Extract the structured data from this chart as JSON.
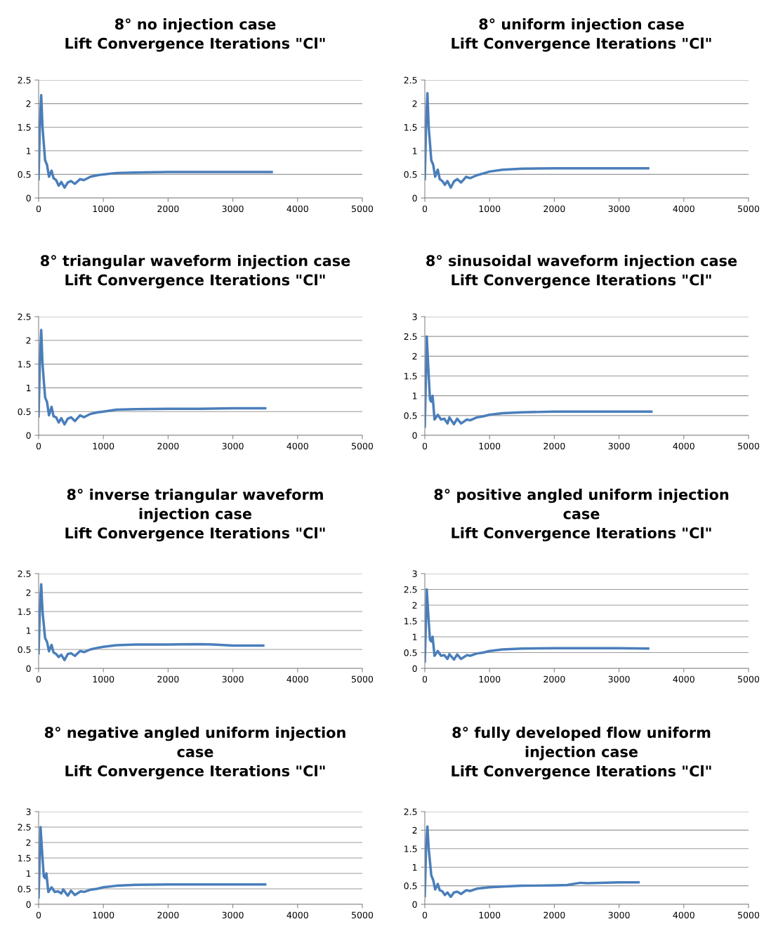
{
  "chart_data": [
    {
      "type": "line",
      "title": "8° no injection case\nLift Convergence Iterations \"Cl\"",
      "xlim": [
        0,
        5000
      ],
      "xticks": [
        0,
        1000,
        2000,
        3000,
        4000,
        5000
      ],
      "ylim": [
        0,
        2.5
      ],
      "yticks": [
        0,
        0.5,
        1,
        1.5,
        2,
        2.5
      ],
      "grid": "y",
      "legend": false,
      "series": [
        {
          "color": "#4a7ebb",
          "x": [
            0,
            20,
            40,
            60,
            100,
            130,
            160,
            200,
            230,
            270,
            310,
            350,
            400,
            450,
            500,
            560,
            640,
            700,
            800,
            900,
            1000,
            1200,
            1500,
            2000,
            2500,
            3000,
            3600
          ],
          "values": [
            0.4,
            1.6,
            2.18,
            1.5,
            0.8,
            0.7,
            0.45,
            0.58,
            0.42,
            0.38,
            0.26,
            0.34,
            0.22,
            0.33,
            0.36,
            0.3,
            0.4,
            0.38,
            0.45,
            0.48,
            0.5,
            0.53,
            0.54,
            0.55,
            0.55,
            0.55,
            0.55
          ]
        }
      ]
    },
    {
      "type": "line",
      "title": "8° uniform injection case\nLift Convergence Iterations \"Cl\"",
      "xlim": [
        0,
        5000
      ],
      "xticks": [
        0,
        1000,
        2000,
        3000,
        4000,
        5000
      ],
      "ylim": [
        0,
        2.5
      ],
      "yticks": [
        0,
        0.5,
        1,
        1.5,
        2,
        2.5
      ],
      "grid": "y",
      "legend": false,
      "series": [
        {
          "color": "#4a7ebb",
          "x": [
            0,
            20,
            40,
            60,
            100,
            130,
            160,
            200,
            230,
            270,
            310,
            350,
            400,
            450,
            500,
            560,
            640,
            700,
            800,
            900,
            1000,
            1200,
            1500,
            2000,
            2500,
            3000,
            3450
          ],
          "values": [
            0.4,
            1.6,
            2.22,
            1.5,
            0.8,
            0.7,
            0.45,
            0.6,
            0.4,
            0.36,
            0.28,
            0.36,
            0.22,
            0.35,
            0.4,
            0.33,
            0.45,
            0.42,
            0.48,
            0.52,
            0.56,
            0.6,
            0.62,
            0.63,
            0.63,
            0.63,
            0.63
          ]
        }
      ]
    },
    {
      "type": "line",
      "title": "8° triangular waveform injection case\nLift Convergence Iterations \"Cl\"",
      "xlim": [
        0,
        5000
      ],
      "xticks": [
        0,
        1000,
        2000,
        3000,
        4000,
        5000
      ],
      "ylim": [
        0,
        2.5
      ],
      "yticks": [
        0,
        0.5,
        1,
        1.5,
        2,
        2.5
      ],
      "grid": "y",
      "legend": false,
      "series": [
        {
          "color": "#4a7ebb",
          "x": [
            0,
            20,
            40,
            60,
            100,
            130,
            160,
            200,
            230,
            270,
            310,
            350,
            400,
            450,
            500,
            560,
            640,
            700,
            800,
            900,
            1000,
            1200,
            1500,
            2000,
            2500,
            3000,
            3500
          ],
          "values": [
            0.4,
            1.6,
            2.22,
            1.5,
            0.8,
            0.7,
            0.42,
            0.6,
            0.4,
            0.38,
            0.27,
            0.36,
            0.23,
            0.35,
            0.38,
            0.3,
            0.42,
            0.38,
            0.45,
            0.48,
            0.5,
            0.54,
            0.55,
            0.56,
            0.56,
            0.57,
            0.57
          ]
        }
      ]
    },
    {
      "type": "line",
      "title": "8° sinusoidal waveform injection case\nLift Convergence Iterations \"Cl\"",
      "xlim": [
        0,
        5000
      ],
      "xticks": [
        0,
        1000,
        2000,
        3000,
        4000,
        5000
      ],
      "ylim": [
        0,
        3
      ],
      "yticks": [
        0,
        0.5,
        1,
        1.5,
        2,
        2.5,
        3
      ],
      "grid": "y",
      "legend": false,
      "series": [
        {
          "color": "#4a7ebb",
          "x": [
            0,
            30,
            60,
            80,
            100,
            120,
            150,
            200,
            250,
            300,
            350,
            380,
            450,
            500,
            560,
            650,
            700,
            800,
            900,
            1000,
            1200,
            1500,
            2000,
            2500,
            3000,
            3500
          ],
          "values": [
            0.22,
            2.5,
            1.5,
            0.9,
            0.85,
            1.0,
            0.4,
            0.52,
            0.4,
            0.42,
            0.3,
            0.45,
            0.28,
            0.42,
            0.3,
            0.4,
            0.38,
            0.45,
            0.48,
            0.52,
            0.56,
            0.58,
            0.6,
            0.6,
            0.6,
            0.6
          ]
        }
      ]
    },
    {
      "type": "line",
      "title": "8° inverse triangular waveform\ninjection case\nLift Convergence Iterations \"Cl\"",
      "xlim": [
        0,
        5000
      ],
      "xticks": [
        0,
        1000,
        2000,
        3000,
        4000,
        5000
      ],
      "ylim": [
        0,
        2.5
      ],
      "yticks": [
        0,
        0.5,
        1,
        1.5,
        2,
        2.5
      ],
      "grid": "y",
      "legend": false,
      "series": [
        {
          "color": "#4a7ebb",
          "x": [
            0,
            20,
            40,
            60,
            100,
            130,
            160,
            200,
            230,
            270,
            310,
            350,
            400,
            450,
            500,
            560,
            640,
            700,
            800,
            900,
            1000,
            1200,
            1500,
            2000,
            2500,
            2700,
            3000,
            3470
          ],
          "values": [
            0.4,
            1.6,
            2.22,
            1.5,
            0.8,
            0.7,
            0.45,
            0.62,
            0.42,
            0.38,
            0.3,
            0.36,
            0.22,
            0.38,
            0.4,
            0.33,
            0.46,
            0.43,
            0.5,
            0.54,
            0.57,
            0.61,
            0.63,
            0.63,
            0.64,
            0.63,
            0.6,
            0.6
          ]
        }
      ]
    },
    {
      "type": "line",
      "title": "8° positive angled uniform injection\ncase\nLift Convergence Iterations \"Cl\"",
      "xlim": [
        0,
        5000
      ],
      "xticks": [
        0,
        1000,
        2000,
        3000,
        4000,
        5000
      ],
      "ylim": [
        0,
        3
      ],
      "yticks": [
        0,
        0.5,
        1,
        1.5,
        2,
        2.5,
        3
      ],
      "grid": "y",
      "legend": false,
      "series": [
        {
          "color": "#4a7ebb",
          "x": [
            0,
            30,
            60,
            80,
            100,
            120,
            150,
            200,
            250,
            300,
            350,
            380,
            450,
            500,
            560,
            650,
            700,
            800,
            900,
            1000,
            1200,
            1500,
            2000,
            2500,
            3000,
            3450
          ],
          "values": [
            0.22,
            2.5,
            1.5,
            0.9,
            0.85,
            1.0,
            0.4,
            0.55,
            0.4,
            0.42,
            0.3,
            0.45,
            0.28,
            0.44,
            0.3,
            0.42,
            0.4,
            0.47,
            0.5,
            0.55,
            0.6,
            0.63,
            0.64,
            0.64,
            0.64,
            0.63
          ]
        }
      ]
    },
    {
      "type": "line",
      "title": "8° negative angled uniform injection\ncase\nLift Convergence Iterations \"Cl\"",
      "xlim": [
        0,
        5000
      ],
      "xticks": [
        0,
        1000,
        2000,
        3000,
        4000,
        5000
      ],
      "ylim": [
        0,
        3
      ],
      "yticks": [
        0,
        0.5,
        1,
        1.5,
        2,
        2.5,
        3
      ],
      "grid": "y",
      "legend": false,
      "series": [
        {
          "color": "#4a7ebb",
          "x": [
            0,
            30,
            60,
            80,
            100,
            120,
            150,
            200,
            250,
            300,
            350,
            380,
            450,
            500,
            560,
            650,
            700,
            800,
            900,
            1000,
            1200,
            1500,
            2000,
            2500,
            3000,
            3500
          ],
          "values": [
            0.22,
            2.5,
            1.5,
            0.9,
            0.85,
            1.0,
            0.4,
            0.55,
            0.4,
            0.42,
            0.35,
            0.48,
            0.28,
            0.44,
            0.3,
            0.42,
            0.4,
            0.47,
            0.5,
            0.55,
            0.6,
            0.63,
            0.64,
            0.64,
            0.64,
            0.64
          ]
        }
      ]
    },
    {
      "type": "line",
      "title": "8° fully developed flow uniform\ninjection case\nLift Convergence Iterations \"Cl\"",
      "xlim": [
        0,
        5000
      ],
      "xticks": [
        0,
        1000,
        2000,
        3000,
        4000,
        5000
      ],
      "ylim": [
        0,
        2.5
      ],
      "yticks": [
        0,
        0.5,
        1,
        1.5,
        2,
        2.5
      ],
      "grid": "y",
      "legend": false,
      "series": [
        {
          "color": "#4a7ebb",
          "x": [
            0,
            20,
            40,
            60,
            100,
            130,
            160,
            200,
            230,
            270,
            310,
            350,
            400,
            450,
            500,
            560,
            640,
            700,
            800,
            900,
            1000,
            1200,
            1500,
            2000,
            2200,
            2400,
            2500,
            3000,
            3300
          ],
          "values": [
            0.22,
            1.6,
            2.1,
            1.5,
            0.78,
            0.65,
            0.4,
            0.55,
            0.38,
            0.35,
            0.25,
            0.32,
            0.2,
            0.32,
            0.34,
            0.28,
            0.38,
            0.36,
            0.42,
            0.44,
            0.46,
            0.48,
            0.5,
            0.51,
            0.52,
            0.58,
            0.57,
            0.59,
            0.59
          ]
        }
      ]
    }
  ]
}
